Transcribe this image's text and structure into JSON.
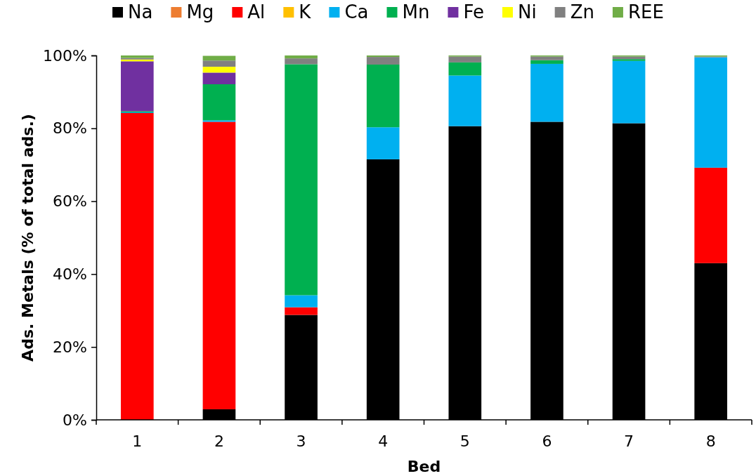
{
  "chart_data": {
    "type": "bar",
    "stacked": true,
    "xlabel": "Bed",
    "ylabel": "Ads. Metals (% of total ads.)",
    "categories": [
      "1",
      "2",
      "3",
      "4",
      "5",
      "6",
      "7",
      "8"
    ],
    "ylim": [
      0,
      100
    ],
    "yticks": [
      {
        "value": 0,
        "label": "0%"
      },
      {
        "value": 20,
        "label": "20%"
      },
      {
        "value": 40,
        "label": "40%"
      },
      {
        "value": 60,
        "label": "60%"
      },
      {
        "value": 80,
        "label": "80%"
      },
      {
        "value": 100,
        "label": "100%"
      }
    ],
    "grid": false,
    "legend": "top",
    "series": [
      {
        "name": "Na",
        "color": "#000000",
        "values": [
          0,
          2.9,
          28.8,
          71.5,
          80.6,
          81.8,
          81.4,
          43.0
        ]
      },
      {
        "name": "Mg",
        "color": "#ed7d31",
        "values": [
          0,
          0,
          0,
          0,
          0,
          0,
          0,
          0
        ]
      },
      {
        "name": "Al",
        "color": "#ff0000",
        "values": [
          84.2,
          78.9,
          2.1,
          0,
          0,
          0,
          0,
          26.2
        ]
      },
      {
        "name": "K",
        "color": "#ffc000",
        "values": [
          0,
          0,
          0,
          0,
          0,
          0,
          0,
          0
        ]
      },
      {
        "name": "Ca",
        "color": "#00b0f0",
        "values": [
          0.2,
          0.4,
          3.3,
          8.8,
          13.9,
          15.9,
          17.1,
          30.3
        ]
      },
      {
        "name": "Mn",
        "color": "#00b050",
        "values": [
          0.3,
          9.9,
          63.4,
          17.2,
          3.6,
          1.0,
          0.5,
          0
        ]
      },
      {
        "name": "Fe",
        "color": "#7030a0",
        "values": [
          13.7,
          3.2,
          0,
          0,
          0,
          0,
          0,
          0
        ]
      },
      {
        "name": "Ni",
        "color": "#ffff00",
        "values": [
          0.5,
          1.6,
          0,
          0,
          0,
          0,
          0,
          0
        ]
      },
      {
        "name": "Zn",
        "color": "#808080",
        "values": [
          0.4,
          1.7,
          1.6,
          2.1,
          1.6,
          1.0,
          0.7,
          0.2
        ]
      },
      {
        "name": "REE",
        "color": "#70ad47",
        "values": [
          0.7,
          1.3,
          0.8,
          0.4,
          0.3,
          0.3,
          0.3,
          0.3
        ]
      }
    ]
  }
}
